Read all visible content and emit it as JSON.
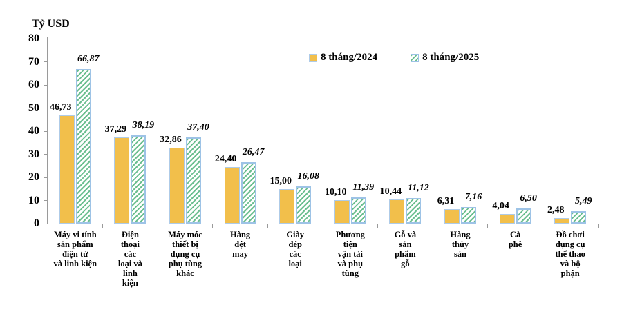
{
  "chart_data": {
    "type": "bar",
    "title": "Tỷ USD",
    "ylabel": "Tỷ USD",
    "xlabel": "",
    "ylim": [
      0,
      80
    ],
    "yticks": [
      0,
      10,
      20,
      30,
      40,
      50,
      60,
      70,
      80
    ],
    "grid": false,
    "legend_position": "top-center",
    "categories": [
      "Máy vi tính sản phẩm điện tử và linh kiện",
      "Điện thoại các loại và linh kiện",
      "Máy móc thiết bị dụng cụ phụ tùng khác",
      "Hàng dệt may",
      "Giày dép các loại",
      "Phương tiện vận tải và phụ tùng",
      "Gỗ và sản phẩm gỗ",
      "Hàng thủy sản",
      "Cà phê",
      "Đồ chơi dụng cụ thể thao và bộ phận"
    ],
    "category_display": [
      "Máy vi tính\nsản phẩm\nđiện tử\nvà linh kiện",
      "Điện\nthoại\ncác\nloại và\nlinh\nkiện",
      "Máy móc\nthiết bị\ndụng cụ\nphụ tùng\nkhác",
      "Hàng\ndệt\nmay",
      "Giày\ndép\ncác\nloại",
      "Phương\ntiện\nvận tải\nvà phụ\ntùng",
      "Gỗ và\nsản\nphẩm\ngỗ",
      "Hàng\nthủy\nsản",
      "Cà\nphê",
      "Đồ chơi\ndụng cụ\nthể thao\nvà bộ\nphận"
    ],
    "series": [
      {
        "name": "8 tháng/2024",
        "values": [
          46.73,
          37.29,
          32.86,
          24.4,
          15.0,
          10.1,
          10.44,
          6.31,
          4.04,
          2.48
        ],
        "value_labels": [
          "46,73",
          "37,29",
          "32,86",
          "24,40",
          "15,00",
          "10,10",
          "10,44",
          "6,31",
          "4,04",
          "2,48"
        ],
        "fill_color": "#f2bf4b",
        "border_color": "#aecbe8",
        "pattern": "solid"
      },
      {
        "name": "8 tháng/2025",
        "values": [
          66.87,
          38.19,
          37.4,
          26.47,
          16.08,
          11.39,
          11.12,
          7.16,
          6.5,
          5.49
        ],
        "value_labels": [
          "66,87",
          "38,19",
          "37,40",
          "26,47",
          "16,08",
          "11,39",
          "11,12",
          "7,16",
          "6,50",
          "5,49"
        ],
        "fill_color": "#6cbf90",
        "border_color": "#9dc3e6",
        "pattern": "diagonal-hatch"
      }
    ],
    "colors": {
      "axis": "#9a9a9a",
      "text": "#000000",
      "hatch_background": "#ffffff"
    }
  }
}
